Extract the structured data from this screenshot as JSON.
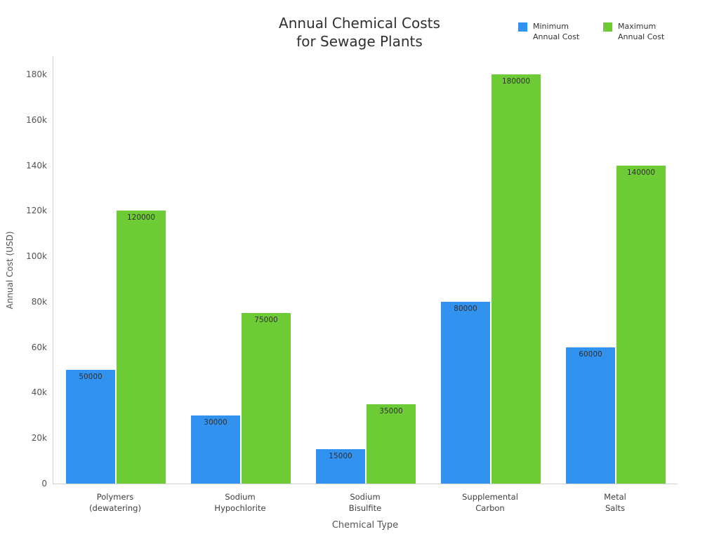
{
  "title": "Annual Chemical Costs\nfor Sewage Plants",
  "chart_data": {
    "type": "bar",
    "title": "Annual Chemical Costs for Sewage Plants",
    "xlabel": "Chemical Type",
    "ylabel": "Annual Cost (USD)",
    "categories": [
      "Polymers\n(dewatering)",
      "Sodium\nHypochlorite",
      "Sodium\nBisulfite",
      "Supplemental\nCarbon",
      "Metal\nSalts"
    ],
    "series": [
      {
        "name": "Minimum Annual Cost",
        "color": "#3292ef",
        "values": [
          50000,
          30000,
          15000,
          80000,
          60000
        ]
      },
      {
        "name": "Maximum Annual Cost",
        "color": "#6dcc35",
        "values": [
          120000,
          75000,
          35000,
          180000,
          140000
        ]
      }
    ],
    "ylim": [
      0,
      190000
    ],
    "yticks": [
      0,
      20000,
      40000,
      60000,
      80000,
      100000,
      120000,
      140000,
      160000,
      180000
    ],
    "ytick_labels": [
      "0",
      "20k",
      "40k",
      "60k",
      "80k",
      "100k",
      "120k",
      "140k",
      "160k",
      "180k"
    ],
    "grid": false,
    "legend_position": "top-right",
    "bar_value_labels": true
  }
}
